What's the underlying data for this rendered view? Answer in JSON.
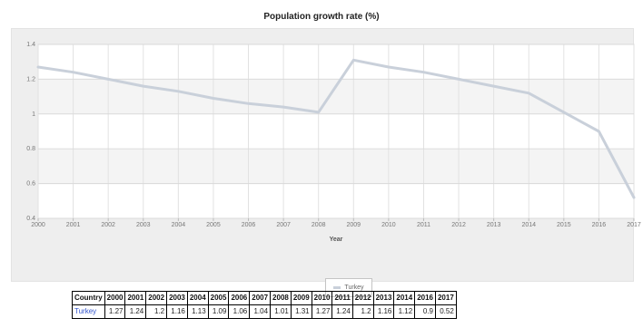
{
  "chart_data": {
    "type": "line",
    "title": "Population growth rate (%)",
    "xlabel": "Year",
    "ylabel": "",
    "x": [
      2000,
      2001,
      2002,
      2003,
      2004,
      2005,
      2006,
      2007,
      2008,
      2009,
      2010,
      2011,
      2012,
      2013,
      2014,
      2015,
      2016,
      2017
    ],
    "x_ticks": [
      "2000",
      "2001",
      "2002",
      "2003",
      "2004",
      "2005",
      "2006",
      "2007",
      "2008",
      "2009",
      "2010",
      "2011",
      "2012",
      "2013",
      "2014",
      "2015",
      "2016",
      "2017"
    ],
    "y_ticks": [
      "1.4",
      "1.2",
      "1",
      "0.8",
      "0.6",
      "0.4"
    ],
    "ylim": [
      0.4,
      1.4
    ],
    "grid": true,
    "legend_position": "bottom-center",
    "series": [
      {
        "name": "Turkey",
        "color": "#c9d0da",
        "points": [
          [
            2000,
            1.27
          ],
          [
            2001,
            1.24
          ],
          [
            2002,
            1.2
          ],
          [
            2003,
            1.16
          ],
          [
            2004,
            1.13
          ],
          [
            2005,
            1.09
          ],
          [
            2006,
            1.06
          ],
          [
            2007,
            1.04
          ],
          [
            2008,
            1.01
          ],
          [
            2009,
            1.31
          ],
          [
            2010,
            1.27
          ],
          [
            2011,
            1.24
          ],
          [
            2012,
            1.2
          ],
          [
            2013,
            1.16
          ],
          [
            2014,
            1.12
          ],
          [
            2016,
            0.9
          ],
          [
            2017,
            0.52
          ]
        ]
      }
    ]
  },
  "table": {
    "header_label": "Country",
    "years": [
      "2000",
      "2001",
      "2002",
      "2003",
      "2004",
      "2005",
      "2006",
      "2007",
      "2008",
      "2009",
      "2010",
      "2011",
      "2012",
      "2013",
      "2014",
      "2016",
      "2017"
    ],
    "rows": [
      {
        "country": "Turkey",
        "values": [
          "1.27",
          "1.24",
          "1.2",
          "1.16",
          "1.13",
          "1.09",
          "1.06",
          "1.04",
          "1.01",
          "1.31",
          "1.27",
          "1.24",
          "1.2",
          "1.16",
          "1.12",
          "0.9",
          "0.52"
        ]
      }
    ]
  }
}
